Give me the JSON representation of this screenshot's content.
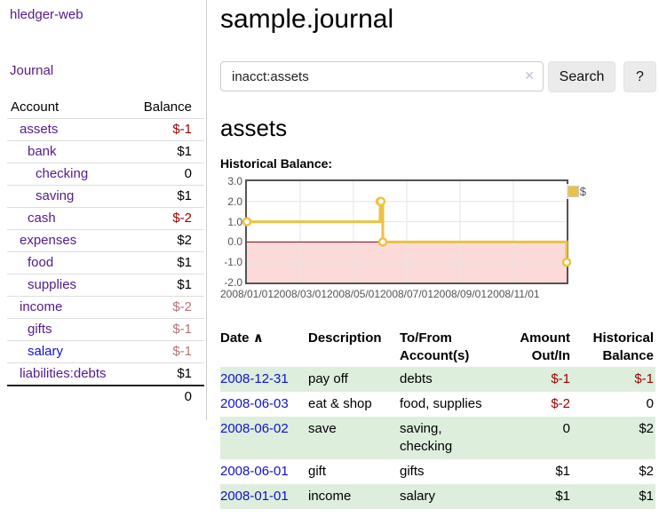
{
  "app": {
    "title": "hledger-web"
  },
  "sidebar": {
    "journal_label": "Journal",
    "accounts_table": {
      "account_header": "Account",
      "balance_header": "Balance",
      "rows": [
        {
          "name": "assets",
          "level": 1,
          "bold": true,
          "name_color": "purple",
          "balance": "$-1",
          "balance_class": "neg"
        },
        {
          "name": "bank",
          "level": 2,
          "bold": true,
          "name_color": "purple",
          "balance": "$1",
          "balance_class": ""
        },
        {
          "name": "checking",
          "level": 3,
          "bold": true,
          "name_color": "purple",
          "balance": "0",
          "balance_class": ""
        },
        {
          "name": "saving",
          "level": 3,
          "bold": true,
          "name_color": "purple",
          "balance": "$1",
          "balance_class": ""
        },
        {
          "name": "cash",
          "level": 2,
          "bold": true,
          "name_color": "purple",
          "balance": "$-2",
          "balance_class": "neg"
        },
        {
          "name": "expenses",
          "level": 1,
          "bold": false,
          "name_color": "purple",
          "balance": "$2",
          "balance_class": ""
        },
        {
          "name": "food",
          "level": 2,
          "bold": false,
          "name_color": "purple",
          "balance": "$1",
          "balance_class": ""
        },
        {
          "name": "supplies",
          "level": 2,
          "bold": false,
          "name_color": "purple",
          "balance": "$1",
          "balance_class": ""
        },
        {
          "name": "income",
          "level": 1,
          "bold": false,
          "name_color": "purple",
          "balance": "$-2",
          "balance_class": "negpale"
        },
        {
          "name": "gifts",
          "level": 2,
          "bold": false,
          "name_color": "purple",
          "balance": "$-1",
          "balance_class": "negpale"
        },
        {
          "name": "salary",
          "level": 2,
          "bold": false,
          "name_color": "blue",
          "balance": "$-1",
          "balance_class": "negpale"
        },
        {
          "name": "liabilities:debts",
          "level": 1,
          "bold": false,
          "name_color": "purple",
          "balance": "$1",
          "balance_class": ""
        }
      ],
      "total": "0"
    }
  },
  "header": {
    "title": "sample.journal"
  },
  "search": {
    "query": "inacct:assets",
    "clear_icon": "✕",
    "button_label": "Search",
    "help_label": "?"
  },
  "main": {
    "account_heading": "assets",
    "chart_label": "Historical Balance:"
  },
  "chart_data": {
    "type": "line",
    "title": "Historical Balance:",
    "steps": true,
    "x_unit": "months since 2008-01-01",
    "xlim": [
      0,
      12
    ],
    "ylim": [
      -2,
      3
    ],
    "y_ticks": [
      {
        "label": "3.0",
        "v": 3
      },
      {
        "label": "2.0",
        "v": 2
      },
      {
        "label": "1.0",
        "v": 1
      },
      {
        "label": "0.0",
        "v": 0
      },
      {
        "label": "-1.0",
        "v": -1
      },
      {
        "label": "-2.0",
        "v": -2
      }
    ],
    "x_ticks": [
      {
        "label": "2008/01/01",
        "x": 0
      },
      {
        "label": "2008/03/01",
        "x": 2
      },
      {
        "label": "2008/05/01",
        "x": 4
      },
      {
        "label": "2008/07/01",
        "x": 6
      },
      {
        "label": "2008/09/01",
        "x": 8
      },
      {
        "label": "2008/11/01",
        "x": 10
      }
    ],
    "series": [
      {
        "name": "$",
        "color": "#edc240",
        "points": [
          {
            "date": "2008-01-01",
            "x": 0,
            "y": 1
          },
          {
            "date": "2008-06-01",
            "x": 5.0,
            "y": 2
          },
          {
            "date": "2008-06-02",
            "x": 5.03,
            "y": 2
          },
          {
            "date": "2008-06-03",
            "x": 5.1,
            "y": 0
          },
          {
            "date": "2008-12-31",
            "x": 12,
            "y": -1
          }
        ]
      }
    ],
    "legend": {
      "label": "$",
      "position": "top-right"
    },
    "grid": true,
    "gridline_color": "#e6e6e6",
    "negative_region_color": "#fcdada",
    "zero_line_color": "#8b0000",
    "border_color": "#545454"
  },
  "transactions": {
    "headers": {
      "date": "Date",
      "sort_icon": "∧",
      "description": "Description",
      "accounts": "To/From Account(s)",
      "amount": "Amount Out/In",
      "balance": "Historical Balance"
    },
    "rows": [
      {
        "date": "2008-12-31",
        "description": "pay off",
        "accounts": "debts",
        "amount": "$-1",
        "amount_neg": true,
        "balance": "$-1",
        "balance_neg": true
      },
      {
        "date": "2008-06-03",
        "description": "eat & shop",
        "accounts": "food, supplies",
        "amount": "$-2",
        "amount_neg": true,
        "balance": "0",
        "balance_neg": false
      },
      {
        "date": "2008-06-02",
        "description": "save",
        "accounts": "saving, checking",
        "amount": "0",
        "amount_neg": false,
        "balance": "$2",
        "balance_neg": false
      },
      {
        "date": "2008-06-01",
        "description": "gift",
        "accounts": "gifts",
        "amount": "$1",
        "amount_neg": false,
        "balance": "$2",
        "balance_neg": false
      },
      {
        "date": "2008-01-01",
        "description": "income",
        "accounts": "salary",
        "amount": "$1",
        "amount_neg": false,
        "balance": "$1",
        "balance_neg": false
      }
    ]
  },
  "colors": {
    "link_purple": "#551a8b",
    "link_blue": "#1111cc",
    "negative_dark_red": "#a00000",
    "negative_pale_red": "#b87272",
    "row_green": "#ddeedd",
    "series_gold": "#edc240"
  }
}
